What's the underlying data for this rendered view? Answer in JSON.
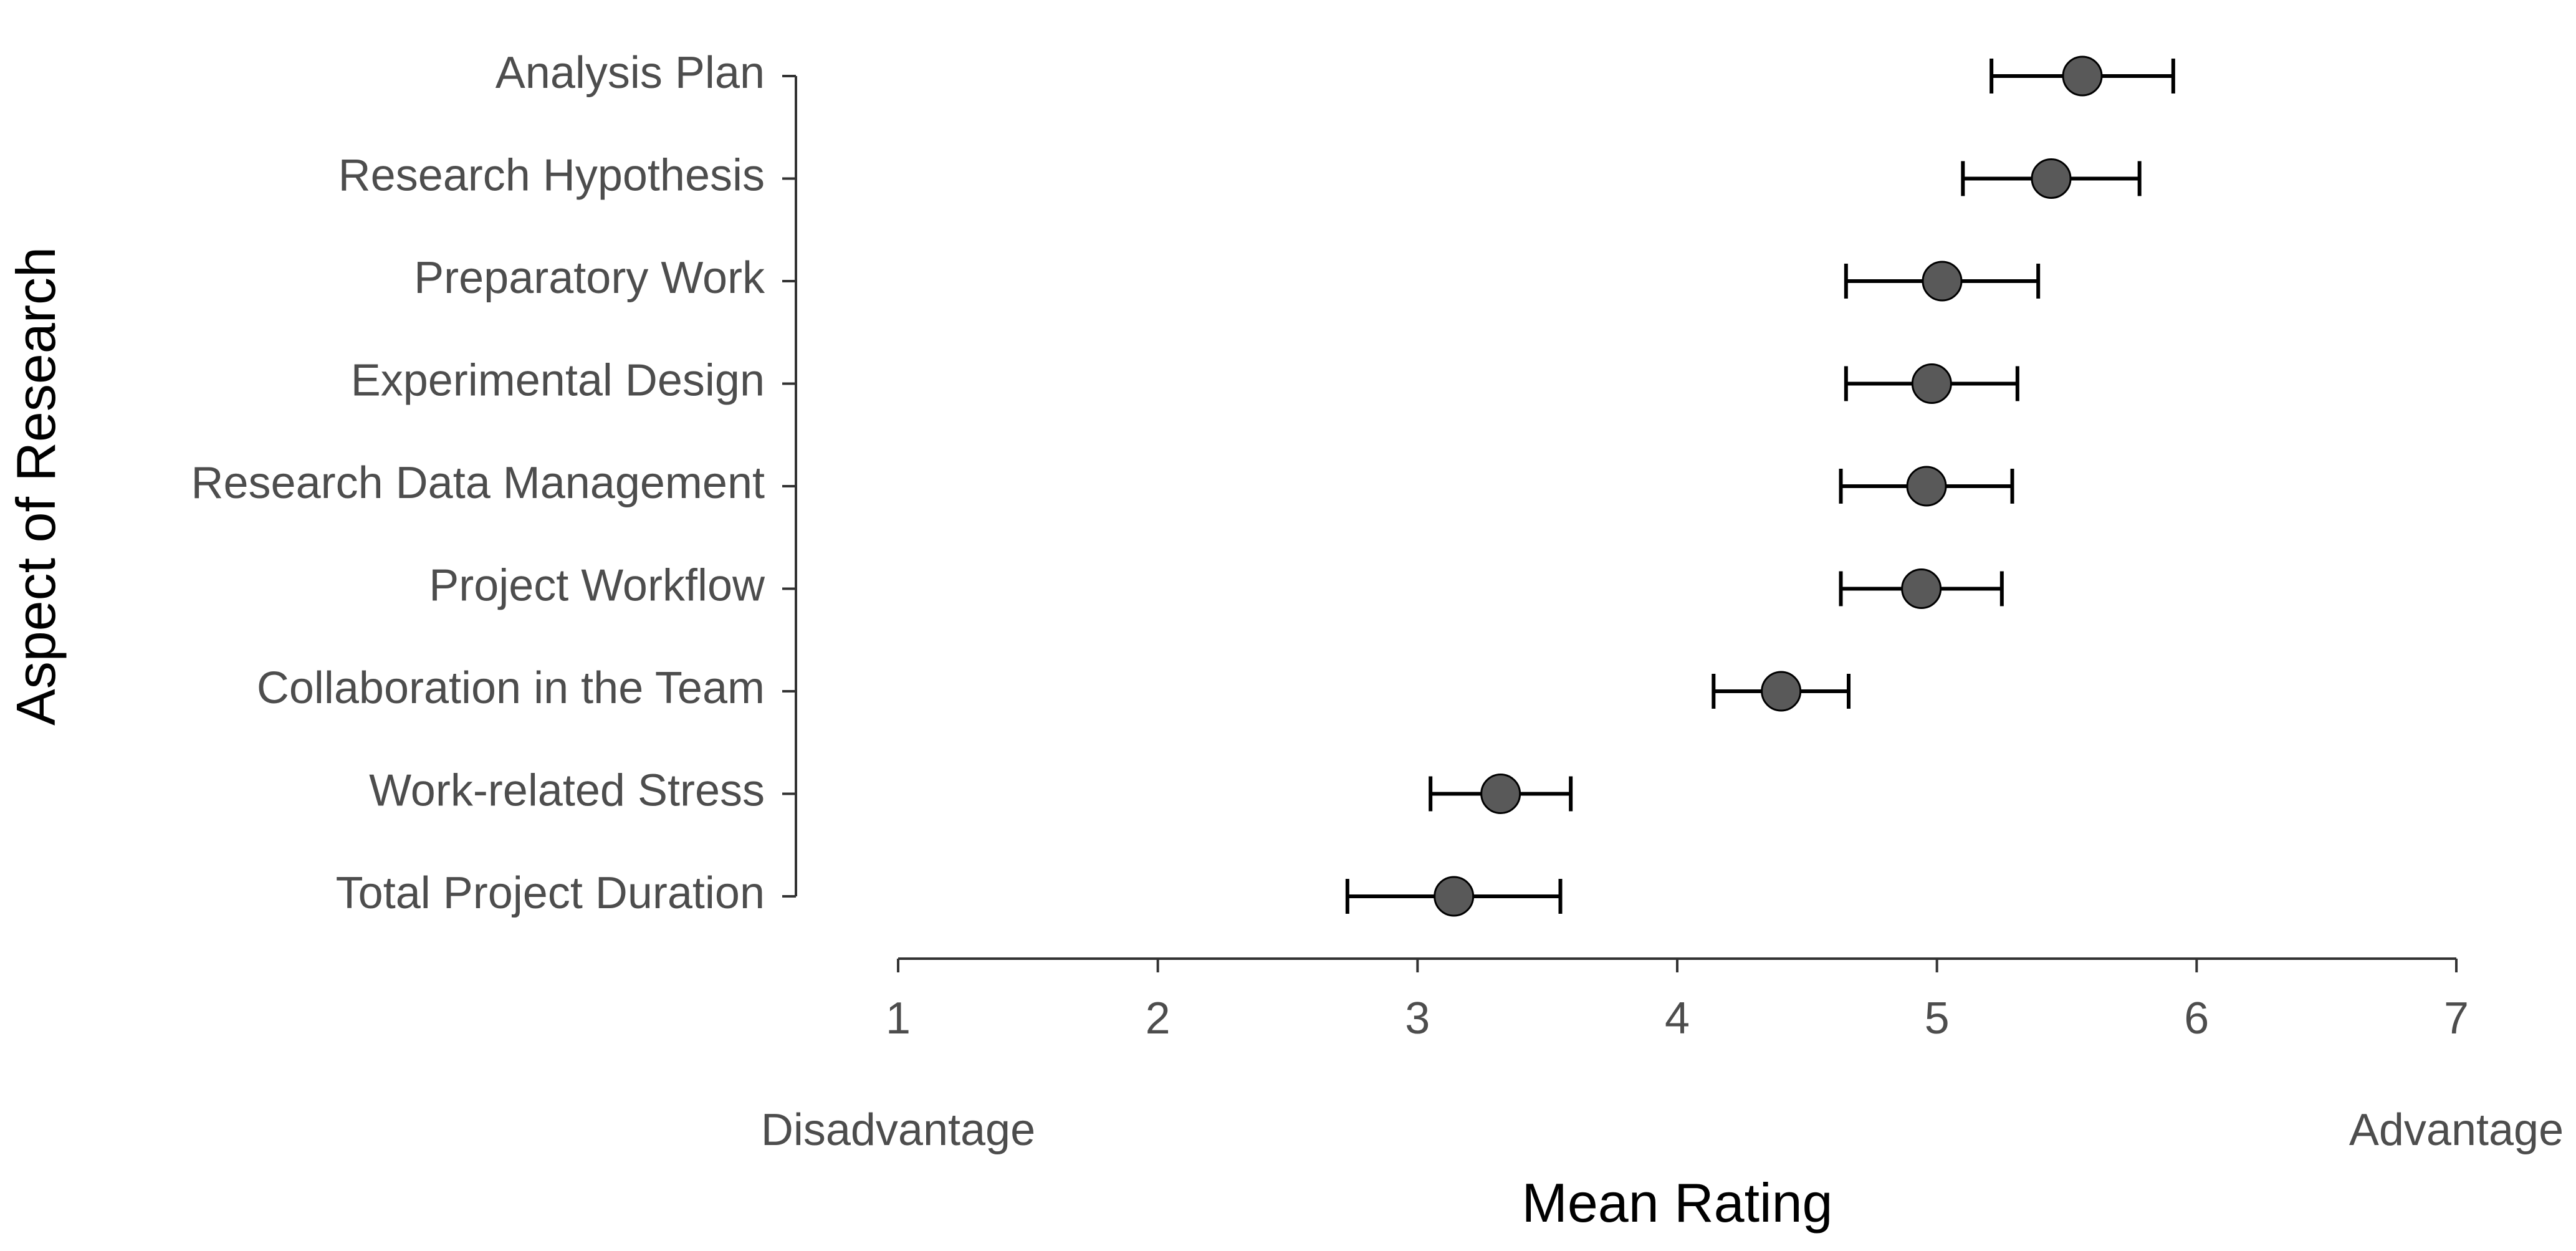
{
  "chart_data": {
    "type": "scatter",
    "subtype": "dot-plot-with-error-bars",
    "xlabel": "Mean Rating",
    "ylabel": "Aspect of Research",
    "xlim": [
      1,
      7
    ],
    "xticks": [
      1,
      2,
      3,
      4,
      5,
      6,
      7
    ],
    "x_anchor_labels": {
      "low": "Disadvantage",
      "high": "Advantage"
    },
    "grid": false,
    "legend": "none",
    "point_color": "#595959",
    "categories": [
      "Analysis Plan",
      "Research Hypothesis",
      "Preparatory Work",
      "Experimental Design",
      "Research Data Management",
      "Project Workflow",
      "Collaboration in the Team",
      "Work-related Stress",
      "Total Project Duration"
    ],
    "values": [
      5.56,
      5.44,
      5.02,
      4.98,
      4.96,
      4.94,
      4.4,
      3.32,
      3.14
    ],
    "error_low": [
      5.21,
      5.1,
      4.65,
      4.65,
      4.63,
      4.63,
      4.14,
      3.05,
      2.73
    ],
    "error_high": [
      5.91,
      5.78,
      5.39,
      5.31,
      5.29,
      5.25,
      4.66,
      3.59,
      3.55
    ]
  }
}
